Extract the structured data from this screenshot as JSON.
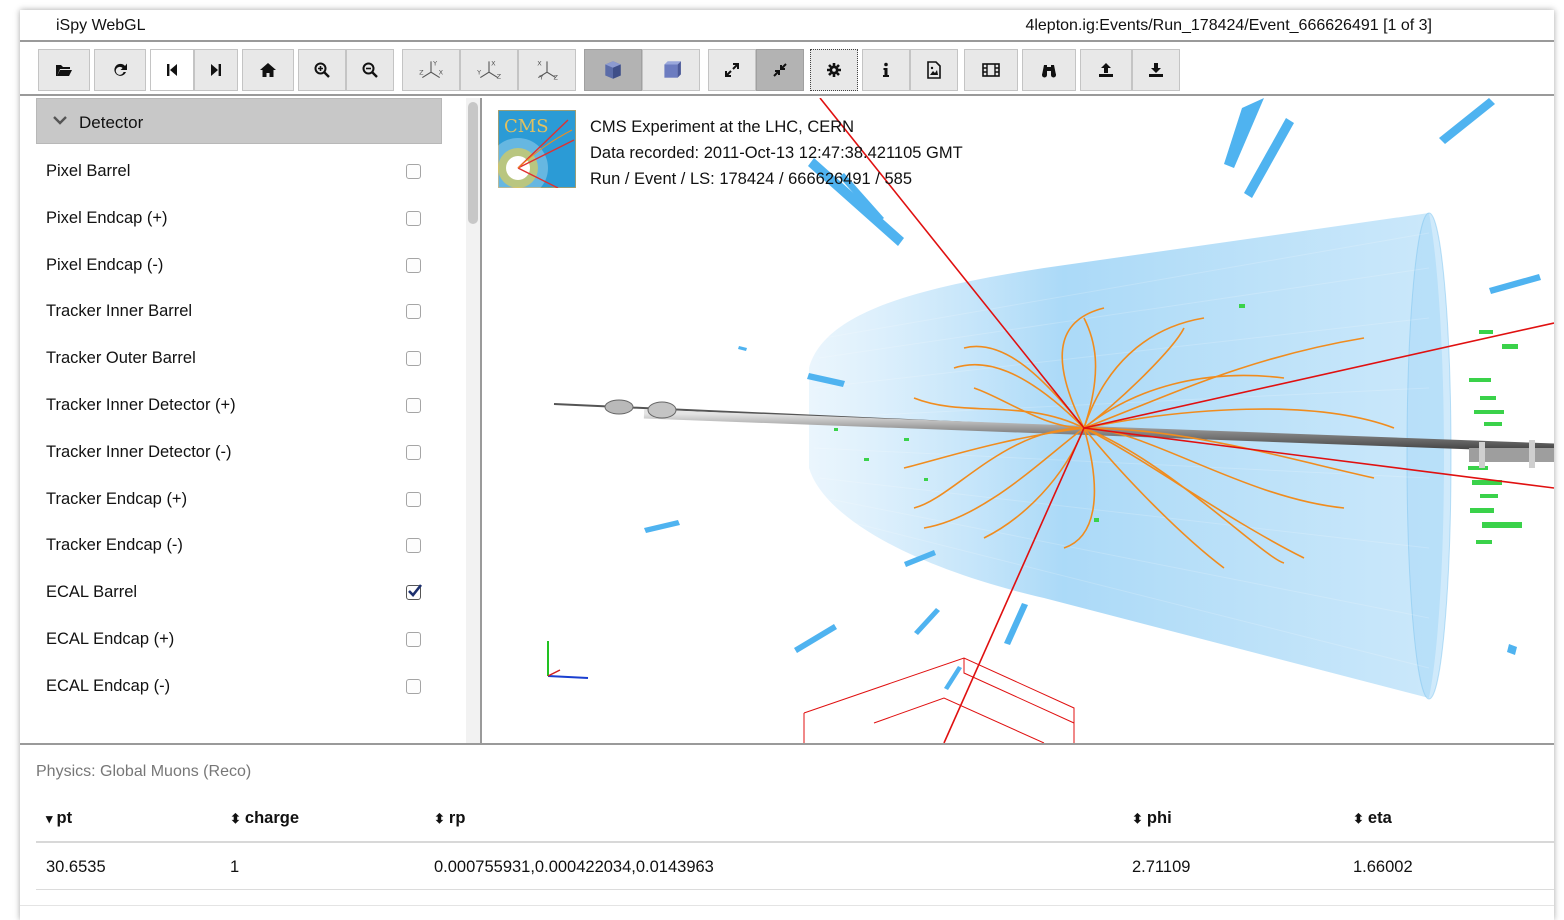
{
  "app": {
    "title": "iSpy WebGL",
    "event_path": "4lepton.ig:Events/Run_178424/Event_666626491 [1 of 3]"
  },
  "toolbar": {
    "buttons": [
      {
        "name": "open-file-button",
        "icon": "folder-open-icon"
      },
      {
        "name": "reload-button",
        "icon": "refresh-icon"
      },
      {
        "name": "previous-event-button",
        "icon": "step-backward-icon"
      },
      {
        "name": "next-event-button",
        "icon": "step-forward-icon"
      },
      {
        "name": "home-view-button",
        "icon": "home-icon"
      },
      {
        "name": "zoom-in-button",
        "icon": "zoom-in-icon"
      },
      {
        "name": "zoom-out-button",
        "icon": "zoom-out-icon"
      },
      {
        "name": "view-yz-button",
        "icon": "axes-yz-icon"
      },
      {
        "name": "view-xz-button",
        "icon": "axes-xz-icon"
      },
      {
        "name": "view-xy-button",
        "icon": "axes-xy-icon"
      },
      {
        "name": "perspective-button",
        "icon": "cube-icon"
      },
      {
        "name": "orthographic-button",
        "icon": "cube-ortho-icon"
      },
      {
        "name": "expand-button",
        "icon": "expand-icon"
      },
      {
        "name": "compress-button",
        "icon": "compress-icon"
      },
      {
        "name": "settings-button",
        "icon": "gear-icon"
      },
      {
        "name": "info-button",
        "icon": "info-icon"
      },
      {
        "name": "export-image-button",
        "icon": "image-icon"
      },
      {
        "name": "animation-button",
        "icon": "film-icon"
      },
      {
        "name": "find-button",
        "icon": "binoculars-icon"
      },
      {
        "name": "upload-button",
        "icon": "upload-icon"
      },
      {
        "name": "download-button",
        "icon": "download-icon"
      }
    ]
  },
  "sidebar": {
    "section_title": "Detector",
    "items": [
      {
        "label": "Pixel Barrel",
        "checked": false
      },
      {
        "label": "Pixel Endcap (+)",
        "checked": false
      },
      {
        "label": "Pixel Endcap (-)",
        "checked": false
      },
      {
        "label": "Tracker Inner Barrel",
        "checked": false
      },
      {
        "label": "Tracker Outer Barrel",
        "checked": false
      },
      {
        "label": "Tracker Inner Detector (+)",
        "checked": false
      },
      {
        "label": "Tracker Inner Detector (-)",
        "checked": false
      },
      {
        "label": "Tracker Endcap (+)",
        "checked": false
      },
      {
        "label": "Tracker Endcap (-)",
        "checked": false
      },
      {
        "label": "ECAL Barrel",
        "checked": true
      },
      {
        "label": "ECAL Endcap (+)",
        "checked": false
      },
      {
        "label": "ECAL Endcap (-)",
        "checked": false
      }
    ]
  },
  "event_info": {
    "logo_text": "CMS",
    "line1": "CMS Experiment at the LHC, CERN",
    "line2": "Data recorded: 2011-Oct-13 12:47:38.421105 GMT",
    "line3": "Run / Event / LS: 178424 / 666626491 / 585"
  },
  "table": {
    "title": "Physics: Global Muons (Reco)",
    "columns": [
      {
        "label": "pt",
        "sort_icon": "sort-desc-icon"
      },
      {
        "label": "charge",
        "sort_icon": "sort-icon"
      },
      {
        "label": "rp",
        "sort_icon": "sort-icon"
      },
      {
        "label": "phi",
        "sort_icon": "sort-icon"
      },
      {
        "label": "eta",
        "sort_icon": "sort-icon"
      }
    ],
    "rows": [
      {
        "pt": "30.6535",
        "charge": "1",
        "rp": "0.000755931,0.000422034,0.0143963",
        "phi": "2.71109",
        "eta": "1.66002"
      }
    ]
  },
  "colors": {
    "ecal": "#4fb3f0",
    "tracks": "#f08c1e",
    "muons": "#e01010",
    "hits": "#3ad24a",
    "beampipe": "#9a9a9a"
  }
}
